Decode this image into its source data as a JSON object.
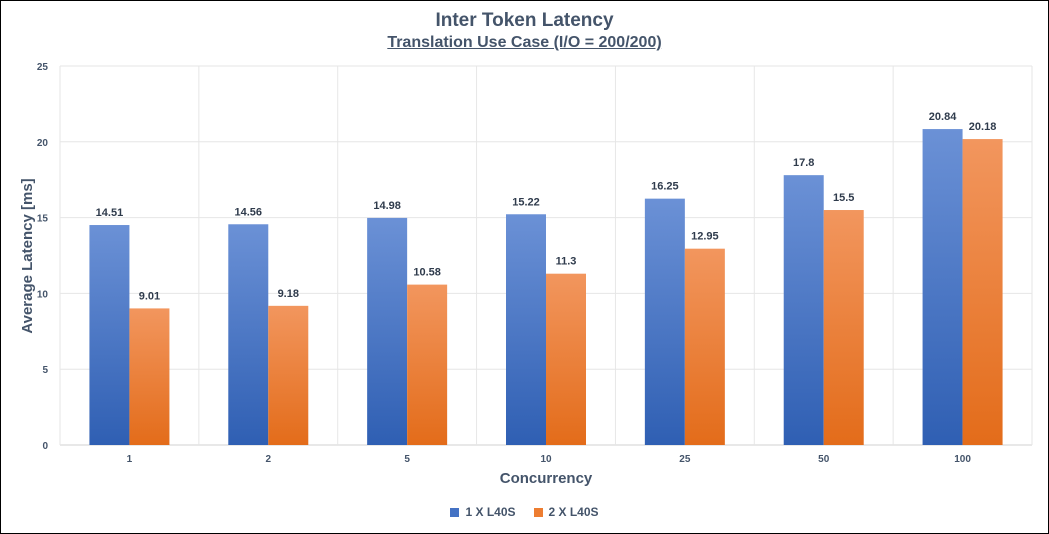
{
  "chart_data": {
    "type": "bar",
    "title": "Inter Token Latency",
    "subtitle": "Translation Use Case (I/O = 200/200)",
    "xlabel": "Concurrency",
    "ylabel": "Average Latency [ms]",
    "ylim": [
      0,
      25
    ],
    "yticks": [
      0,
      5,
      10,
      15,
      20,
      25
    ],
    "categories": [
      "1",
      "2",
      "5",
      "10",
      "25",
      "50",
      "100"
    ],
    "series": [
      {
        "name": "1 X L40S",
        "color": "#4472c4",
        "values": [
          14.51,
          14.56,
          14.98,
          15.22,
          16.25,
          17.8,
          20.84
        ],
        "labels": [
          "14.51",
          "14.56",
          "14.98",
          "15.22",
          "16.25",
          "17.8",
          "20.84"
        ]
      },
      {
        "name": "2 X L40S",
        "color": "#ed7d31",
        "values": [
          9.01,
          9.18,
          10.58,
          11.3,
          12.95,
          15.5,
          20.18
        ],
        "labels": [
          "9.01",
          "9.18",
          "10.58",
          "11.3",
          "12.95",
          "15.5",
          "20.18"
        ]
      }
    ],
    "legend_position": "bottom",
    "grid": true
  }
}
